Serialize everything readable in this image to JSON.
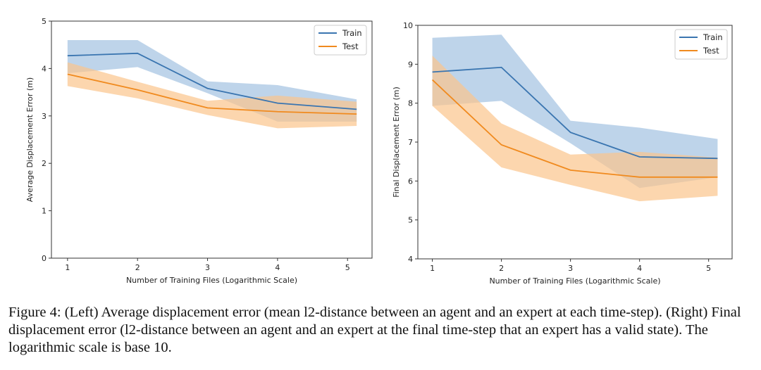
{
  "chart_data": [
    {
      "type": "line",
      "title": "",
      "xlabel": "Number of Training Files (Logarithmic Scale)",
      "ylabel": "Average Displacement Error (m)",
      "x_ticks": [
        "1",
        "2",
        "3",
        "4",
        "5"
      ],
      "y_ticks": [
        "0",
        "1",
        "2",
        "3",
        "4",
        "5"
      ],
      "xlim": [
        0.77,
        5.35
      ],
      "ylim": [
        0,
        5
      ],
      "legend": "top-right",
      "grid": false,
      "x": [
        1,
        2,
        3,
        4,
        5.13
      ],
      "series": [
        {
          "name": "Train",
          "color": "#3a75b0",
          "band_color": "#a8c5e3",
          "values": [
            4.27,
            4.32,
            3.58,
            3.27,
            3.14
          ],
          "lower": [
            3.9,
            4.03,
            3.48,
            2.88,
            2.88
          ],
          "upper": [
            4.6,
            4.6,
            3.73,
            3.65,
            3.35
          ]
        },
        {
          "name": "Test",
          "color": "#f08a1e",
          "band_color": "#fbc58c",
          "values": [
            3.88,
            3.55,
            3.17,
            3.09,
            3.04
          ],
          "lower": [
            3.63,
            3.37,
            3.02,
            2.74,
            2.79
          ],
          "upper": [
            4.13,
            3.72,
            3.32,
            3.43,
            3.3
          ]
        }
      ]
    },
    {
      "type": "line",
      "title": "",
      "xlabel": "Number of Training Files (Logarithmic Scale)",
      "ylabel": "Final Displacement Error (m)",
      "x_ticks": [
        "1",
        "2",
        "3",
        "4",
        "5"
      ],
      "y_ticks": [
        "4",
        "5",
        "6",
        "7",
        "8",
        "9",
        "10"
      ],
      "xlim": [
        0.79,
        5.34
      ],
      "ylim": [
        4,
        10
      ],
      "legend": "top-right",
      "grid": false,
      "x": [
        1,
        2,
        3,
        4,
        5.13
      ],
      "series": [
        {
          "name": "Train",
          "color": "#3a75b0",
          "band_color": "#a8c5e3",
          "values": [
            8.8,
            8.92,
            7.25,
            6.62,
            6.58
          ],
          "lower": [
            7.93,
            8.06,
            6.97,
            5.82,
            6.1
          ],
          "upper": [
            9.68,
            9.76,
            7.55,
            7.37,
            7.08
          ]
        },
        {
          "name": "Test",
          "color": "#f08a1e",
          "band_color": "#fbc58c",
          "values": [
            8.6,
            6.93,
            6.28,
            6.1,
            6.1
          ],
          "lower": [
            7.93,
            6.35,
            5.9,
            5.48,
            5.62
          ],
          "upper": [
            9.22,
            7.48,
            6.68,
            6.75,
            6.6
          ]
        }
      ]
    }
  ],
  "caption": "Figure 4: (Left) Average displacement error (mean l2-distance between an agent and an expert at each time-step). (Right) Final displacement error (l2-distance between an agent and an expert at the final time-step that an expert has a valid state). The logarithmic scale is base 10."
}
